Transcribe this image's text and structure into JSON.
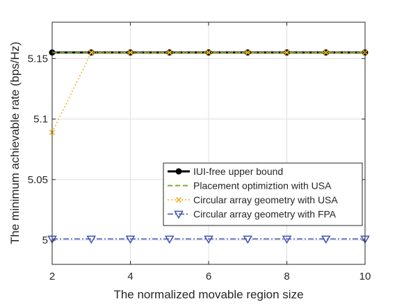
{
  "chart_data": {
    "type": "line",
    "title": "",
    "xlabel": "The normalized movable region size",
    "ylabel": "The minimum achievable rate (bps/Hz)",
    "xlim": [
      2,
      10
    ],
    "ylim": [
      4.98,
      5.18
    ],
    "x_ticks": [
      2,
      4,
      6,
      8,
      10
    ],
    "y_ticks": [
      5,
      5.05,
      5.1,
      5.15
    ],
    "y_tick_labels": [
      "5",
      "5.05",
      "5.1",
      "5.15"
    ],
    "grid": true,
    "legend_position": "lower-right",
    "x": [
      2,
      3,
      4,
      5,
      6,
      7,
      8,
      9,
      10
    ],
    "series": [
      {
        "name": "IUI-free upper bound",
        "color": "#000000",
        "line_style": "solid",
        "marker": "circle",
        "values": [
          5.155,
          5.155,
          5.155,
          5.155,
          5.155,
          5.155,
          5.155,
          5.155,
          5.155
        ]
      },
      {
        "name": "Placement optimiztion with USA",
        "color": "#77ac30",
        "line_style": "dashed",
        "marker": "none",
        "values": [
          5.155,
          5.155,
          5.155,
          5.155,
          5.155,
          5.155,
          5.155,
          5.155,
          5.155
        ]
      },
      {
        "name": "Circular array geometry with USA",
        "color": "#edb120",
        "line_style": "dotted",
        "marker": "x",
        "values": [
          5.089,
          5.155,
          5.155,
          5.155,
          5.155,
          5.155,
          5.155,
          5.155,
          5.155
        ]
      },
      {
        "name": "Circular array geometry with FPA",
        "color": "#3f51b5",
        "line_style": "dashdot",
        "marker": "triangle-down",
        "values": [
          5.001,
          5.001,
          5.001,
          5.001,
          5.001,
          5.001,
          5.001,
          5.001,
          5.001
        ]
      }
    ]
  }
}
